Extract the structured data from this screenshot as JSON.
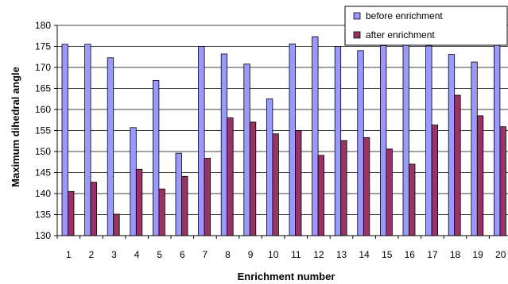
{
  "chart_data": {
    "type": "bar",
    "title": "",
    "xlabel": "Enrichment number",
    "ylabel": "Maximum dihedral angle",
    "ylim": [
      130,
      180
    ],
    "yticks": [
      130,
      135,
      140,
      145,
      150,
      155,
      160,
      165,
      170,
      175,
      180
    ],
    "grid": true,
    "legend_position": "top-right",
    "categories": [
      "1",
      "2",
      "3",
      "4",
      "5",
      "6",
      "7",
      "8",
      "9",
      "10",
      "11",
      "12",
      "13",
      "14",
      "15",
      "16",
      "17",
      "18",
      "19",
      "20"
    ],
    "series": [
      {
        "name": "before enrichment",
        "color": "#9999ff",
        "values": [
          175.5,
          175.5,
          172.3,
          155.7,
          166.9,
          149.6,
          175,
          173.2,
          170.8,
          162.5,
          175.6,
          177.3,
          175,
          174,
          175.2,
          175.5,
          175.1,
          173.1,
          171.3,
          175.5
        ]
      },
      {
        "name": "after enrichment",
        "color": "#993366",
        "values": [
          140.5,
          142.7,
          135.1,
          145.8,
          141.1,
          144.1,
          148.4,
          158,
          157,
          154.2,
          155,
          149.1,
          152.6,
          153.3,
          150.6,
          147,
          156.3,
          163.4,
          158.5,
          155.9
        ]
      }
    ]
  }
}
